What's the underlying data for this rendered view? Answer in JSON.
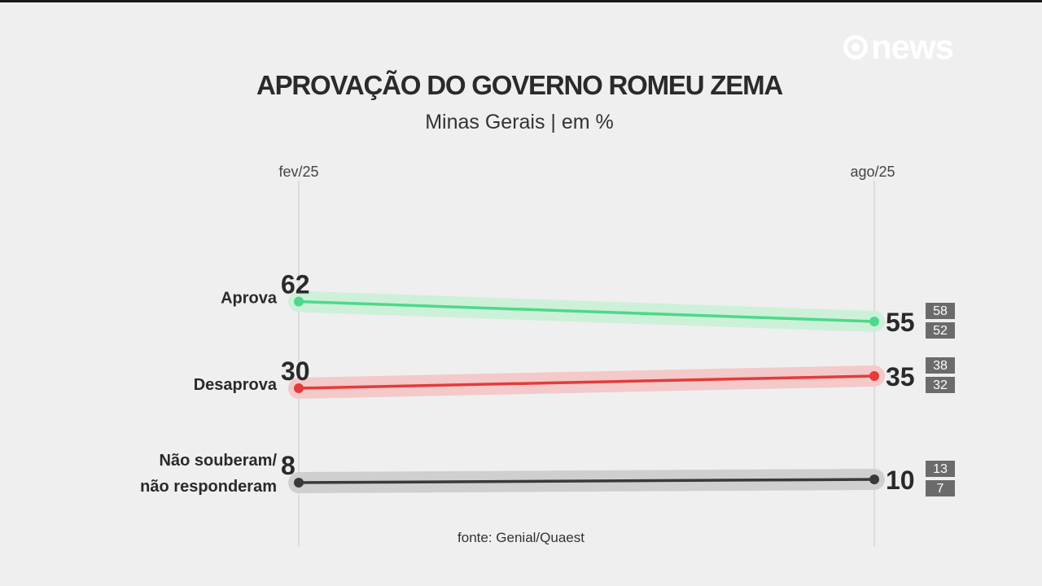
{
  "brand": {
    "logo_text": "news"
  },
  "chart_data": {
    "type": "line",
    "title": "APROVAÇÃO DO GOVERNO ROMEU ZEMA",
    "subtitle": "Minas Gerais | em %",
    "source": "fonte: Genial/Quaest",
    "x": [
      "fev/25",
      "ago/25"
    ],
    "series": [
      {
        "name": "Aprova",
        "values": [
          62,
          55
        ],
        "margin_of_error": {
          "upper": 58,
          "lower": 52
        },
        "color": "#4cd98a",
        "band_color": "#cdf0d8"
      },
      {
        "name": "Desaprova",
        "values": [
          30,
          35
        ],
        "margin_of_error": {
          "upper": 38,
          "lower": 32
        },
        "color": "#e23c3c",
        "band_color": "#f4c9c9"
      },
      {
        "name": "Não souberam/ não responderam",
        "values": [
          8,
          10
        ],
        "margin_of_error": {
          "upper": 13,
          "lower": 7
        },
        "color": "#3a3a3a",
        "band_color": "#cfcfcf"
      }
    ]
  }
}
